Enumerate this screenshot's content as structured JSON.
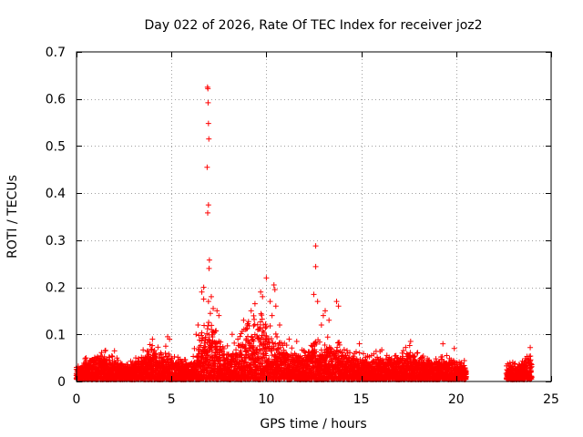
{
  "chart_data": {
    "type": "scatter",
    "title": "Day 022 of 2026, Rate Of TEC Index for receiver joz2",
    "xlabel": "GPS time / hours",
    "ylabel": "ROTI / TECUs",
    "xlim": [
      0,
      25
    ],
    "ylim": [
      0,
      0.7
    ],
    "x_ticks": [
      0,
      5,
      10,
      15,
      20,
      25
    ],
    "y_ticks": [
      0,
      0.1,
      0.2,
      0.3,
      0.4,
      0.5,
      0.6,
      0.7
    ],
    "x_tick_labels": [
      "0",
      "5",
      "10",
      "15",
      "20",
      "25"
    ],
    "y_tick_labels": [
      "0",
      "0.1",
      "0.2",
      "0.3",
      "0.4",
      "0.5",
      "0.6",
      "0.7"
    ],
    "grid": true,
    "marker": "+",
    "series_color": "#ff0000",
    "data_gap": [
      20.55,
      22.65
    ],
    "envelope": [
      [
        0.0,
        0.022
      ],
      [
        0.5,
        0.035
      ],
      [
        1.0,
        0.038
      ],
      [
        1.5,
        0.045
      ],
      [
        2.0,
        0.035
      ],
      [
        2.5,
        0.03
      ],
      [
        3.0,
        0.03
      ],
      [
        3.5,
        0.045
      ],
      [
        4.0,
        0.055
      ],
      [
        4.5,
        0.045
      ],
      [
        5.0,
        0.04
      ],
      [
        5.5,
        0.032
      ],
      [
        6.0,
        0.03
      ],
      [
        6.5,
        0.07
      ],
      [
        7.0,
        0.11
      ],
      [
        7.5,
        0.06
      ],
      [
        8.0,
        0.05
      ],
      [
        8.5,
        0.065
      ],
      [
        9.0,
        0.085
      ],
      [
        9.5,
        0.11
      ],
      [
        10.0,
        0.1
      ],
      [
        10.5,
        0.07
      ],
      [
        11.0,
        0.055
      ],
      [
        11.5,
        0.045
      ],
      [
        12.0,
        0.045
      ],
      [
        12.5,
        0.06
      ],
      [
        13.0,
        0.06
      ],
      [
        13.5,
        0.07
      ],
      [
        14.0,
        0.055
      ],
      [
        14.5,
        0.045
      ],
      [
        15.0,
        0.04
      ],
      [
        15.5,
        0.04
      ],
      [
        16.0,
        0.045
      ],
      [
        16.5,
        0.045
      ],
      [
        17.0,
        0.04
      ],
      [
        17.5,
        0.055
      ],
      [
        18.0,
        0.04
      ],
      [
        18.5,
        0.035
      ],
      [
        19.0,
        0.035
      ],
      [
        19.5,
        0.04
      ],
      [
        20.0,
        0.035
      ],
      [
        20.5,
        0.03
      ],
      [
        22.7,
        0.025
      ],
      [
        23.0,
        0.03
      ],
      [
        23.5,
        0.03
      ],
      [
        24.0,
        0.045
      ]
    ],
    "outliers": [
      [
        6.9,
        0.625
      ],
      [
        6.92,
        0.622
      ],
      [
        6.93,
        0.592
      ],
      [
        6.95,
        0.548
      ],
      [
        6.97,
        0.515
      ],
      [
        6.88,
        0.455
      ],
      [
        6.95,
        0.375
      ],
      [
        6.91,
        0.358
      ],
      [
        7.0,
        0.258
      ],
      [
        6.98,
        0.24
      ],
      [
        6.7,
        0.2
      ],
      [
        6.6,
        0.19
      ],
      [
        6.7,
        0.175
      ],
      [
        7.1,
        0.18
      ],
      [
        6.95,
        0.17
      ],
      [
        7.2,
        0.155
      ],
      [
        7.4,
        0.15
      ],
      [
        7.5,
        0.14
      ],
      [
        6.4,
        0.12
      ],
      [
        6.3,
        0.1
      ],
      [
        10.0,
        0.22
      ],
      [
        10.4,
        0.205
      ],
      [
        10.45,
        0.195
      ],
      [
        9.7,
        0.19
      ],
      [
        9.8,
        0.18
      ],
      [
        10.2,
        0.17
      ],
      [
        9.4,
        0.165
      ],
      [
        9.2,
        0.15
      ],
      [
        10.5,
        0.16
      ],
      [
        10.3,
        0.14
      ],
      [
        8.8,
        0.13
      ],
      [
        9.0,
        0.12
      ],
      [
        10.7,
        0.12
      ],
      [
        12.6,
        0.288
      ],
      [
        12.6,
        0.244
      ],
      [
        12.5,
        0.185
      ],
      [
        12.7,
        0.17
      ],
      [
        13.1,
        0.15
      ],
      [
        13.7,
        0.17
      ],
      [
        13.8,
        0.16
      ],
      [
        13.0,
        0.14
      ],
      [
        13.3,
        0.13
      ],
      [
        12.9,
        0.12
      ],
      [
        4.0,
        0.09
      ],
      [
        4.8,
        0.095
      ],
      [
        4.9,
        0.09
      ],
      [
        4.7,
        0.075
      ],
      [
        1.5,
        0.065
      ],
      [
        2.0,
        0.065
      ],
      [
        0.5,
        0.05
      ],
      [
        17.6,
        0.085
      ],
      [
        19.3,
        0.08
      ],
      [
        19.9,
        0.07
      ],
      [
        23.9,
        0.072
      ],
      [
        14.9,
        0.08
      ],
      [
        11.2,
        0.09
      ],
      [
        11.6,
        0.085
      ],
      [
        8.2,
        0.1
      ],
      [
        8.5,
        0.09
      ]
    ]
  }
}
